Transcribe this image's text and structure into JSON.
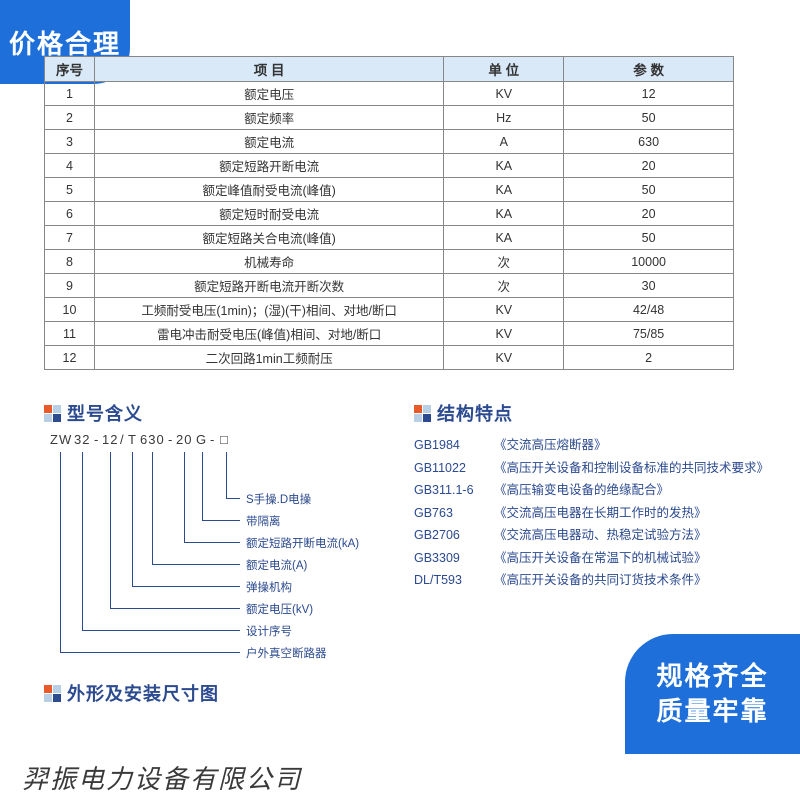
{
  "badges": {
    "top_left": "价格合理",
    "bottom_right_l1": "规格齐全",
    "bottom_right_l2": "质量牢靠"
  },
  "company": "羿振电力设备有限公司",
  "table": {
    "headers": {
      "seq": "序号",
      "item": "项 目",
      "unit": "单 位",
      "value": "参 数"
    },
    "rows": [
      {
        "seq": "1",
        "item": "额定电压",
        "unit": "KV",
        "value": "12"
      },
      {
        "seq": "2",
        "item": "额定频率",
        "unit": "Hz",
        "value": "50"
      },
      {
        "seq": "3",
        "item": "额定电流",
        "unit": "A",
        "value": "630"
      },
      {
        "seq": "4",
        "item": "额定短路开断电流",
        "unit": "KA",
        "value": "20"
      },
      {
        "seq": "5",
        "item": "额定峰值耐受电流(峰值)",
        "unit": "KA",
        "value": "50"
      },
      {
        "seq": "6",
        "item": "额定短时耐受电流",
        "unit": "KA",
        "value": "20"
      },
      {
        "seq": "7",
        "item": "额定短路关合电流(峰值)",
        "unit": "KA",
        "value": "50"
      },
      {
        "seq": "8",
        "item": "机械寿命",
        "unit": "次",
        "value": "10000"
      },
      {
        "seq": "9",
        "item": "额定短路开断电流开断次数",
        "unit": "次",
        "value": "30"
      },
      {
        "seq": "10",
        "item": "工频耐受电压(1min)；(湿)(干)相间、对地/断口",
        "unit": "KV",
        "value": "42/48"
      },
      {
        "seq": "11",
        "item": "雷电冲击耐受电压(峰值)相间、对地/断口",
        "unit": "KV",
        "value": "75/85"
      },
      {
        "seq": "12",
        "item": "二次回路1min工频耐压",
        "unit": "KV",
        "value": "2"
      }
    ],
    "colors": {
      "header_bg": "#d9e9f7",
      "border": "#878787",
      "text": "#333333"
    }
  },
  "sections": {
    "model": "型号含义",
    "struct": "结构特点",
    "dim": "外形及安装尺寸图"
  },
  "model": {
    "code_parts": {
      "p0": "ZW",
      "p1": "32",
      "p2": "-",
      "p3": "12",
      "p4": "/",
      "p5": "T",
      "p6": "630",
      "p7": "-",
      "p8": "20",
      "p9": "G",
      "p10": "-",
      "p11": "□"
    },
    "labels": {
      "l0": "S手操.D电操",
      "l1": "带隔离",
      "l2": "额定短路开断电流(kA)",
      "l3": "额定电流(A)",
      "l4": "弹操机构",
      "l5": "额定电压(kV)",
      "l6": "设计序号",
      "l7": "户外真空断路器"
    },
    "colors": {
      "line": "#2b4a8f",
      "text": "#2b4a8f"
    }
  },
  "standards": [
    {
      "code": "GB1984",
      "title": "《交流高压熔断器》"
    },
    {
      "code": "GB11022",
      "title": "《高压开关设备和控制设备标准的共同技术要求》"
    },
    {
      "code": "GB311.1-6",
      "title": "《高压输变电设备的绝缘配合》"
    },
    {
      "code": "GB763",
      "title": "《交流高压电器在长期工作时的发热》"
    },
    {
      "code": "GB2706",
      "title": "《交流高压电器动、热稳定试验方法》"
    },
    {
      "code": "GB3309",
      "title": "《高压开关设备在常温下的机械试验》"
    },
    {
      "code": "DL/T593",
      "title": "《高压开关设备的共同订货技术条件》"
    }
  ],
  "palette": {
    "brand_blue": "#1e6fd9",
    "heading_blue": "#2b4a8f",
    "bullet_orange": "#e85a2a",
    "bullet_light": "#b9cfe6",
    "background": "#ffffff"
  }
}
